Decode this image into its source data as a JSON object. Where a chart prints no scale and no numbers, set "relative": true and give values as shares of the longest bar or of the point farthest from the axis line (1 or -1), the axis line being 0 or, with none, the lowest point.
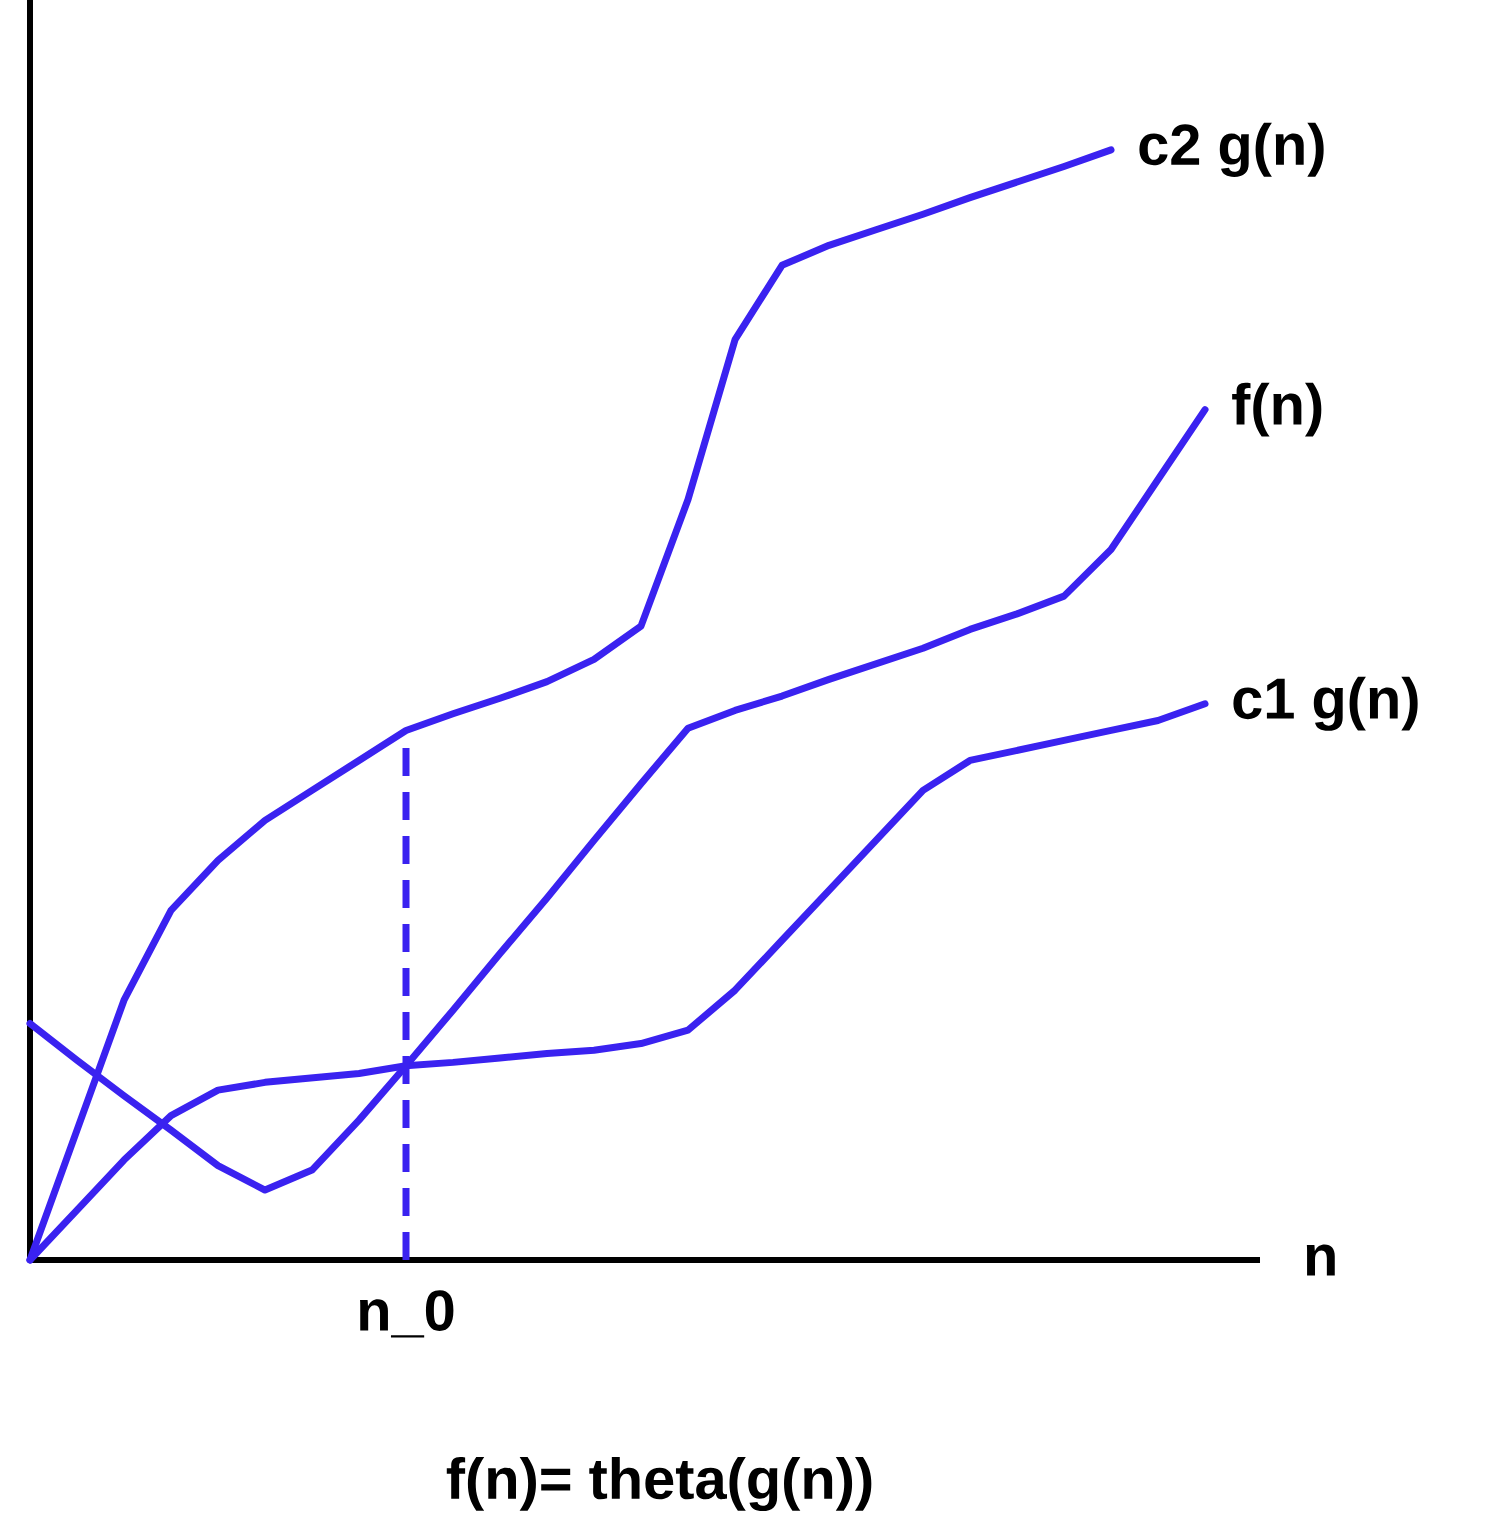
{
  "chart_data": {
    "type": "line",
    "relative": true,
    "xlabel": "n",
    "tick_labels": false,
    "marker": "none",
    "line_style": "solid",
    "categories": [
      null,
      null,
      null,
      null,
      null,
      null,
      null,
      null,
      null,
      null,
      null,
      null,
      null,
      null,
      null,
      null,
      null,
      null,
      null,
      null,
      null,
      null,
      null,
      null,
      null,
      null,
      null
    ],
    "series": [
      {
        "name": "c2 g(n)",
        "color": "#3a22f0",
        "values": [
          0,
          0.117,
          0.234,
          0.315,
          0.36,
          0.396,
          0.423,
          0.45,
          0.477,
          0.492,
          0.506,
          0.521,
          0.541,
          0.571,
          0.685,
          0.829,
          0.896,
          0.914,
          0.928,
          0.942,
          0.957,
          0.971,
          0.985,
          1.0,
          null,
          null,
          null
        ]
      },
      {
        "name": "f(n)",
        "color": "#3a22f0",
        "values": [
          0.213,
          0.18,
          0.148,
          0.117,
          0.085,
          0.063,
          0.081,
          0.126,
          0.175,
          0.225,
          0.276,
          0.326,
          0.378,
          0.429,
          0.479,
          0.495,
          0.508,
          0.523,
          0.537,
          0.551,
          0.568,
          0.582,
          0.598,
          0.64,
          0.703,
          0.766,
          null
        ]
      },
      {
        "name": "c1 g(n)",
        "color": "#3a22f0",
        "values": [
          0,
          0.045,
          0.09,
          0.13,
          0.153,
          0.16,
          0.164,
          0.168,
          0.175,
          0.178,
          0.182,
          0.186,
          0.189,
          0.195,
          0.207,
          0.243,
          0.288,
          0.333,
          0.378,
          0.423,
          0.45,
          0.459,
          0.468,
          0.477,
          0.486,
          0.501,
          null
        ]
      }
    ],
    "annotations": [
      "n_0",
      "f(n)= theta(g(n))"
    ]
  }
}
